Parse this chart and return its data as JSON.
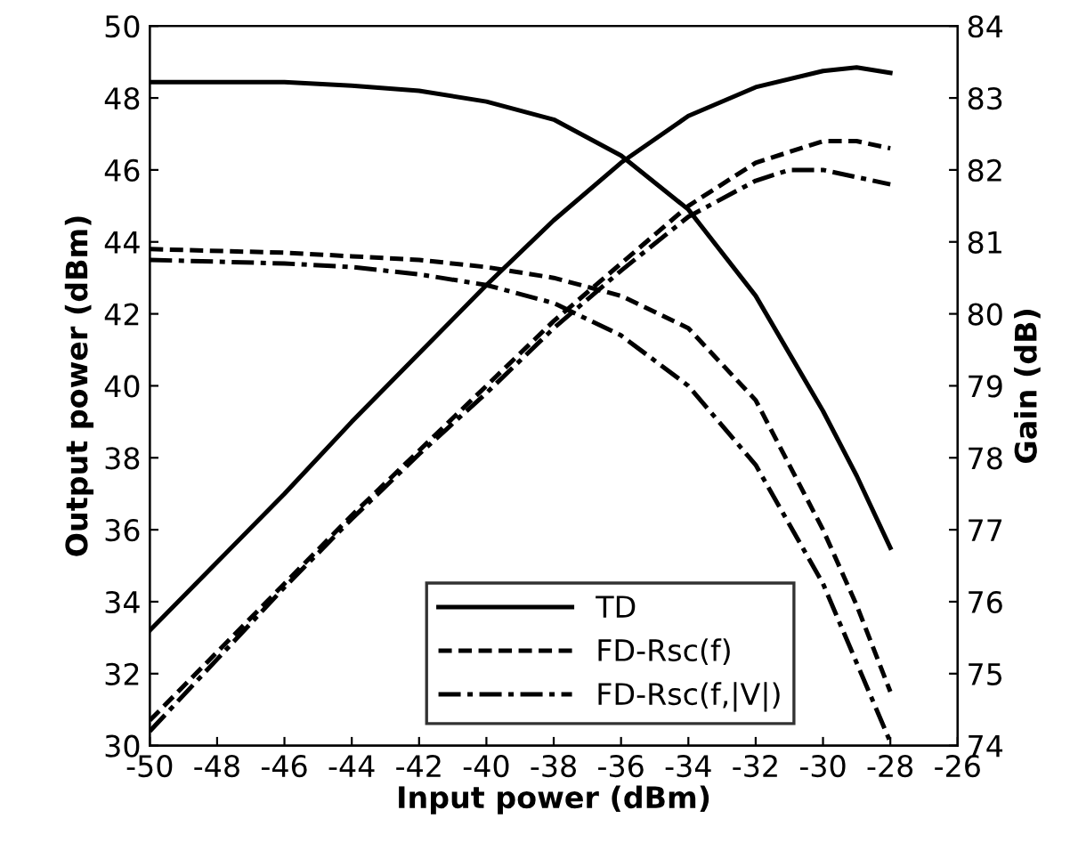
{
  "chart_data": {
    "type": "line",
    "xlabel": "Input power (dBm)",
    "ylabel": "Output power (dBm)",
    "y2label": "Gain (dB)",
    "xlim": [
      -50,
      -26
    ],
    "xticks": [
      -50,
      -48,
      -46,
      -44,
      -42,
      -40,
      -38,
      -36,
      -34,
      -32,
      -30,
      -28,
      -26
    ],
    "ylim": [
      30,
      50
    ],
    "yticks": [
      30,
      32,
      34,
      36,
      38,
      40,
      42,
      44,
      46,
      48,
      50
    ],
    "y2lim": [
      74,
      84
    ],
    "y2ticks": [
      74,
      75,
      76,
      77,
      78,
      79,
      80,
      81,
      82,
      83,
      84
    ],
    "grid": false,
    "legend": "bottom",
    "marker": "none",
    "series": [
      {
        "name": "TD",
        "color": "#000000",
        "line_style": "solid",
        "x": [
          -50,
          -48,
          -46,
          -44,
          -42,
          -40,
          -38,
          -36,
          -34,
          -32,
          -30,
          -29,
          -28
        ],
        "values": [
          33.2,
          35.1,
          37.0,
          39.0,
          40.9,
          42.8,
          44.6,
          46.2,
          47.5,
          48.3,
          48.75,
          48.85,
          48.7
        ]
      },
      {
        "name": "FD-Rsc(f)",
        "color": "#000000",
        "line_style": "dashed",
        "x": [
          -50,
          -48,
          -46,
          -44,
          -42,
          -40,
          -38,
          -36,
          -34,
          -32,
          -30,
          -29,
          -28
        ],
        "values": [
          30.7,
          32.6,
          34.5,
          36.4,
          38.2,
          40.0,
          41.8,
          43.4,
          45.0,
          46.2,
          46.8,
          46.8,
          46.6
        ]
      },
      {
        "name": "FD-Rsc(f,|V|)",
        "color": "#000000",
        "line_style": "dashdot",
        "x": [
          -50,
          -48,
          -46,
          -44,
          -42,
          -40,
          -38,
          -36,
          -34,
          -32,
          -31,
          -30,
          -29,
          -28
        ],
        "values": [
          30.4,
          32.4,
          34.4,
          36.3,
          38.1,
          39.8,
          41.6,
          43.2,
          44.7,
          45.7,
          46.0,
          46.0,
          45.8,
          45.6
        ]
      },
      {
        "color": "#000000",
        "line_style": "solid",
        "axis": "y2",
        "x": [
          -50,
          -46,
          -44,
          -42,
          -40,
          -38,
          -36,
          -34,
          -32,
          -30,
          -29,
          -28
        ],
        "values": [
          83.22,
          83.22,
          83.17,
          83.1,
          82.95,
          82.7,
          82.2,
          81.45,
          80.25,
          78.65,
          77.75,
          76.75
        ]
      },
      {
        "color": "#000000",
        "line_style": "dashed",
        "axis": "y2",
        "x": [
          -50,
          -46,
          -44,
          -42,
          -40,
          -38,
          -36,
          -34,
          -32,
          -30,
          -29,
          -28
        ],
        "values": [
          80.9,
          80.85,
          80.8,
          80.75,
          80.65,
          80.5,
          80.25,
          79.8,
          78.8,
          77.0,
          75.95,
          74.75
        ]
      },
      {
        "color": "#000000",
        "line_style": "dashdot",
        "axis": "y2",
        "x": [
          -50,
          -46,
          -44,
          -42,
          -40,
          -38,
          -36,
          -34,
          -32,
          -30,
          -29,
          -28
        ],
        "values": [
          80.75,
          80.7,
          80.65,
          80.55,
          80.4,
          80.15,
          79.7,
          79.0,
          77.9,
          76.25,
          75.15,
          74.05
        ]
      }
    ]
  }
}
